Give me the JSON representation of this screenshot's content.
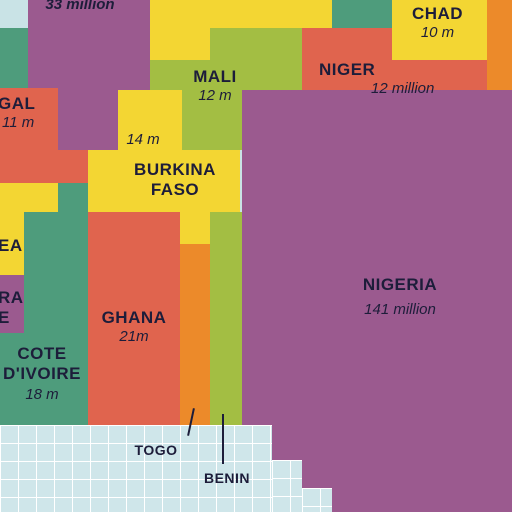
{
  "colors": {
    "purple": "#9b5a8f",
    "yellow": "#f3d633",
    "green": "#a3be43",
    "red": "#e0644e",
    "orange": "#ec8a2a",
    "teal": "#4e9c7c",
    "sea": "#cfe6ea",
    "text": "#1d1d3a"
  },
  "countries": {
    "top_left": {
      "value": "33 million"
    },
    "chad": {
      "name": "CHAD",
      "value": "10 m"
    },
    "mali": {
      "name": "MALI",
      "value": "12 m"
    },
    "niger": {
      "name": "NIGER",
      "value": "12 million"
    },
    "senegal": {
      "name": "GAL",
      "value": "11 m"
    },
    "burkina_faso": {
      "name_line1": "BURKINA",
      "name_line2": "FASO",
      "value": "14 m"
    },
    "guinea": {
      "name": "EA"
    },
    "sierra_leone": {
      "name_line1": "RA",
      "name_line2": "E"
    },
    "nigeria": {
      "name": "NIGERIA",
      "value": "141 million"
    },
    "ghana": {
      "name": "GHANA",
      "value": "21m"
    },
    "cote_divoire": {
      "name_line1": "COTE",
      "name_line2": "D'IVOIRE",
      "value": "18 m"
    },
    "togo": {
      "name": "TOGO"
    },
    "benin": {
      "name": "BENIN"
    }
  }
}
